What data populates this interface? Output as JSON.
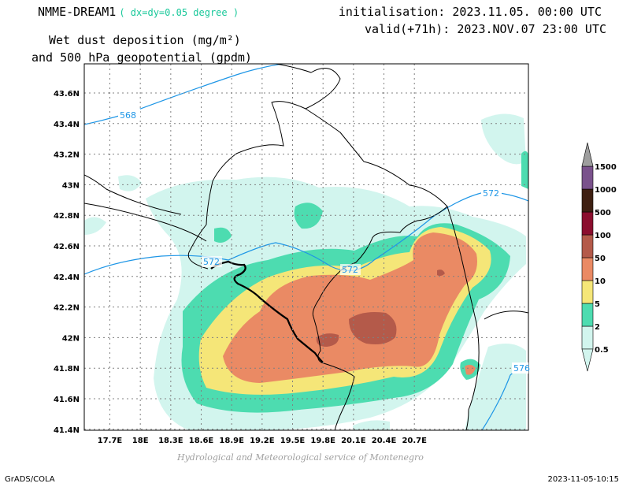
{
  "header": {
    "model": "NMME-DREAM1",
    "resolution": "( dx=dy=0.05 degree )",
    "variable_line1": "Wet dust deposition (mg/m²)",
    "variable_line2": "and 500 hPa geopotential (gpdm)",
    "initialisation": "initialisation: 2023.11.05. 00:00 UTC",
    "valid": "valid(+71h): 2023.NOV.07 23:00 UTC"
  },
  "map": {
    "x_ticks": [
      "17.7E",
      "18E",
      "18.3E",
      "18.6E",
      "18.9E",
      "19.2E",
      "19.5E",
      "19.8E",
      "20.1E",
      "20.4E",
      "20.7E"
    ],
    "y_ticks": [
      "43.6N",
      "43.4N",
      "43.2N",
      "43N",
      "42.8N",
      "42.6N",
      "42.4N",
      "42.2N",
      "42N",
      "41.8N",
      "41.6N",
      "41.4N"
    ],
    "contour_labels": [
      "568",
      "572",
      "572",
      "572",
      "576"
    ]
  },
  "legend": {
    "levels": [
      "0.5",
      "2",
      "5",
      "10",
      "50",
      "100",
      "500",
      "1000",
      "1500"
    ],
    "colors": [
      "#d2f5ee",
      "#4ddcb0",
      "#f5e678",
      "#ea8a64",
      "#b45a4a",
      "#8b0e2e",
      "#3e1f12",
      "#7a528c",
      "#9e9e9e"
    ]
  },
  "footer": {
    "credit": "Hydrological and Meteorological service of Montenegro",
    "software": "GrADS/COLA",
    "timestamp": "2023-11-05-10:15"
  }
}
